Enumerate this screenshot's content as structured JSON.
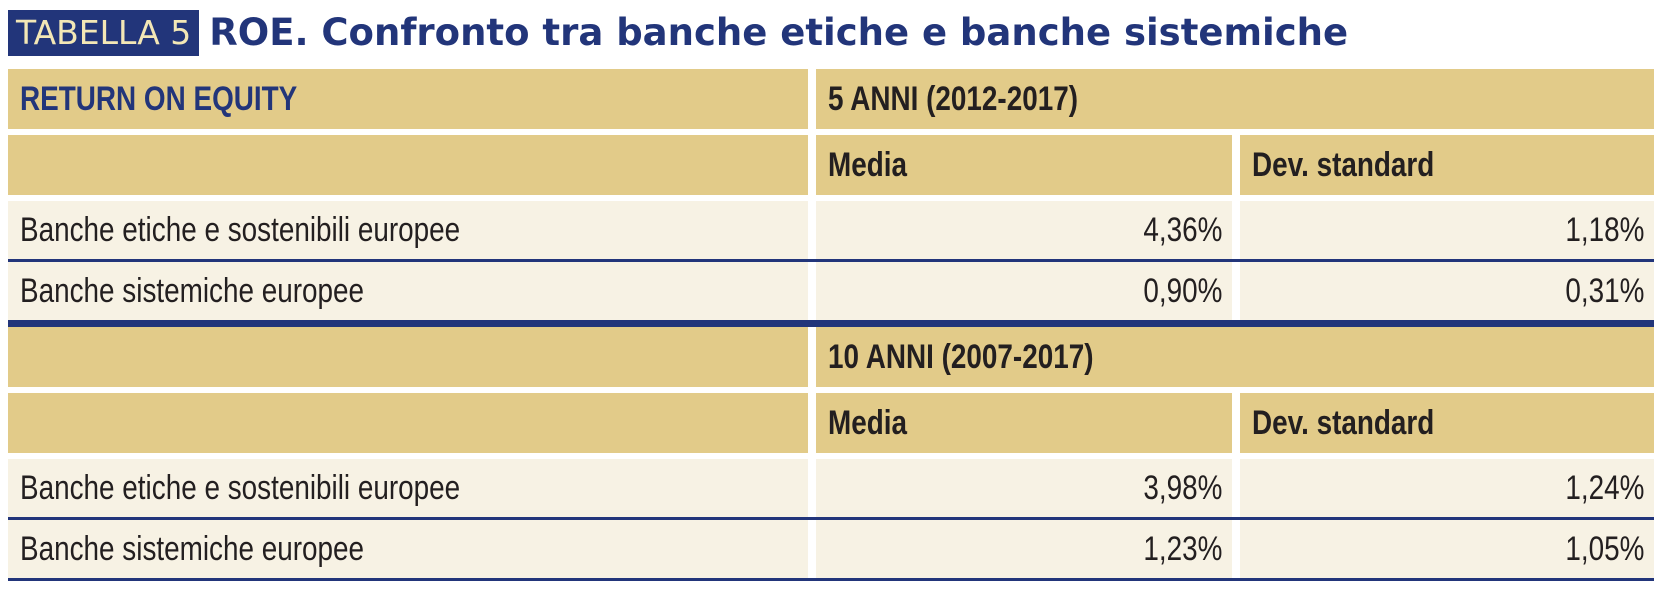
{
  "title": {
    "tag": "TABELLA 5",
    "text": "ROE. Confronto tra banche etiche e banche sistemiche"
  },
  "table": {
    "header_label": "RETURN ON EQUITY",
    "sections": [
      {
        "period": "5 ANNI (2012-2017)",
        "col_media": "Media",
        "col_dev": "Dev. standard",
        "rows": [
          {
            "label": "Banche etiche e sostenibili europee",
            "media": "4,36%",
            "dev": "1,18%"
          },
          {
            "label": "Banche sistemiche europee",
            "media": "0,90%",
            "dev": "0,31%"
          }
        ]
      },
      {
        "period": "10 ANNI (2007-2017)",
        "col_media": "Media",
        "col_dev": "Dev. standard",
        "rows": [
          {
            "label": "Banche etiche e sostenibili europee",
            "media": "3,98%",
            "dev": "1,24%"
          },
          {
            "label": "Banche sistemiche europee",
            "media": "1,23%",
            "dev": "1,05%"
          }
        ]
      }
    ]
  },
  "colors": {
    "navy": "#22357a",
    "header_gold": "#e2cb89",
    "row_cream": "#f7f2e4",
    "tag_text": "#f3e7b6"
  }
}
